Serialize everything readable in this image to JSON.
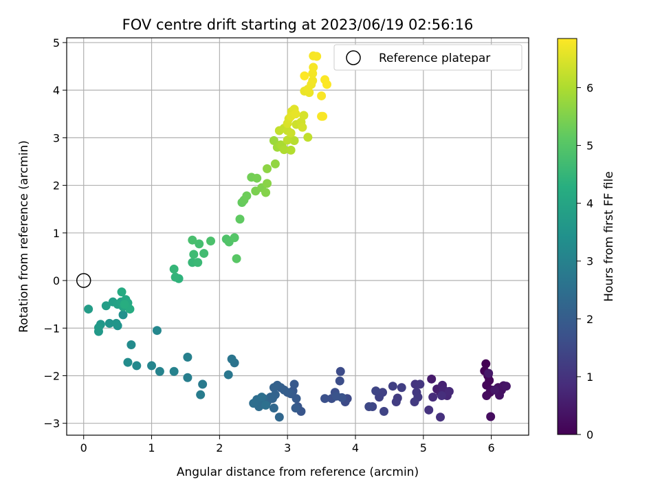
{
  "chart_data": {
    "type": "scatter",
    "title": "FOV centre drift starting at 2023/06/19 02:56:16",
    "xlabel": "Angular distance from reference (arcmin)",
    "ylabel": "Rotation from reference (arcmin)",
    "xlim": [
      -0.25,
      6.55
    ],
    "ylim": [
      -3.25,
      5.1
    ],
    "xticks": [
      0,
      1,
      2,
      3,
      4,
      5,
      6
    ],
    "yticks": [
      -3,
      -2,
      -1,
      0,
      1,
      2,
      3,
      4,
      5
    ],
    "xtick_labels": [
      "0",
      "1",
      "2",
      "3",
      "4",
      "5",
      "6"
    ],
    "ytick_labels": [
      "−3",
      "−2",
      "−1",
      "0",
      "1",
      "2",
      "3",
      "4",
      "5"
    ],
    "grid": true,
    "colormap": "viridis",
    "colorbar": {
      "label": "Hours from first FF file",
      "range": [
        0,
        6.85
      ],
      "ticks": [
        0,
        1,
        2,
        3,
        4,
        5,
        6
      ],
      "tick_labels": [
        "0",
        "1",
        "2",
        "3",
        "4",
        "5",
        "6"
      ]
    },
    "legend": {
      "placement": "top-right",
      "entries": [
        "Reference platepar"
      ]
    },
    "reference_point": {
      "x": 0,
      "y": 0
    },
    "points": [
      [
        5.92,
        -1.75,
        0.0
      ],
      [
        5.9,
        -1.9,
        0.03
      ],
      [
        5.95,
        -2.0,
        0.06
      ],
      [
        5.97,
        -2.1,
        0.09
      ],
      [
        5.93,
        -2.2,
        0.12
      ],
      [
        6.0,
        -2.3,
        0.15
      ],
      [
        5.98,
        -2.35,
        0.18
      ],
      [
        5.93,
        -2.42,
        0.21
      ],
      [
        5.99,
        -2.86,
        0.24
      ],
      [
        6.1,
        -2.25,
        0.27
      ],
      [
        6.15,
        -2.3,
        0.3
      ],
      [
        6.12,
        -2.41,
        0.33
      ],
      [
        6.18,
        -2.21,
        0.36
      ],
      [
        6.22,
        -2.22,
        0.39
      ],
      [
        6.05,
        -2.3,
        0.42
      ],
      [
        5.96,
        -1.95,
        0.45
      ],
      [
        5.12,
        -2.07,
        0.5
      ],
      [
        5.2,
        -2.28,
        0.55
      ],
      [
        5.25,
        -2.35,
        0.6
      ],
      [
        5.28,
        -2.2,
        0.65
      ],
      [
        5.3,
        -2.3,
        0.7
      ],
      [
        5.35,
        -2.42,
        0.75
      ],
      [
        5.38,
        -2.33,
        0.8
      ],
      [
        5.14,
        -2.45,
        0.85
      ],
      [
        5.27,
        -2.42,
        0.9
      ],
      [
        5.25,
        -2.87,
        0.95
      ],
      [
        5.08,
        -2.72,
        1.0
      ],
      [
        4.88,
        -2.18,
        1.05
      ],
      [
        4.95,
        -2.18,
        1.08
      ],
      [
        4.9,
        -2.35,
        1.11
      ],
      [
        4.92,
        -2.45,
        1.14
      ],
      [
        4.87,
        -2.55,
        1.17
      ],
      [
        4.62,
        -2.47,
        1.2
      ],
      [
        4.6,
        -2.55,
        1.23
      ],
      [
        4.68,
        -2.25,
        1.26
      ],
      [
        4.55,
        -2.22,
        1.29
      ],
      [
        4.4,
        -2.35,
        1.32
      ],
      [
        4.35,
        -2.45,
        1.35
      ],
      [
        4.42,
        -2.75,
        1.38
      ],
      [
        4.3,
        -2.32,
        1.41
      ],
      [
        4.25,
        -2.65,
        1.44
      ],
      [
        4.2,
        -2.65,
        1.47
      ],
      [
        3.88,
        -2.48,
        1.52
      ],
      [
        3.85,
        -2.55,
        1.55
      ],
      [
        3.78,
        -1.91,
        1.58
      ],
      [
        3.77,
        -2.11,
        1.61
      ],
      [
        3.7,
        -2.35,
        1.64
      ],
      [
        3.65,
        -2.48,
        1.67
      ],
      [
        3.55,
        -2.48,
        1.7
      ],
      [
        3.8,
        -2.46,
        1.73
      ],
      [
        3.72,
        -2.43,
        1.76
      ],
      [
        3.2,
        -2.75,
        1.8
      ],
      [
        3.15,
        -2.65,
        1.83
      ],
      [
        3.08,
        -2.32,
        1.86
      ],
      [
        3.1,
        -2.18,
        1.89
      ],
      [
        3.13,
        -2.48,
        1.92
      ],
      [
        3.05,
        -2.38,
        1.95
      ],
      [
        3.12,
        -2.68,
        1.98
      ],
      [
        3.0,
        -2.35,
        2.01
      ],
      [
        2.95,
        -2.3,
        2.04
      ],
      [
        2.9,
        -2.25,
        2.07
      ],
      [
        2.85,
        -2.2,
        2.1
      ],
      [
        2.8,
        -2.25,
        2.13
      ],
      [
        2.82,
        -2.4,
        2.16
      ],
      [
        2.78,
        -2.48,
        2.19
      ],
      [
        2.75,
        -2.45,
        2.22
      ],
      [
        2.7,
        -2.55,
        2.25
      ],
      [
        2.88,
        -2.87,
        2.28
      ],
      [
        2.8,
        -2.68,
        2.31
      ],
      [
        2.65,
        -2.48,
        2.34
      ],
      [
        2.6,
        -2.55,
        2.37
      ],
      [
        2.58,
        -2.65,
        2.4
      ],
      [
        2.55,
        -2.5,
        2.43
      ],
      [
        2.5,
        -2.58,
        2.46
      ],
      [
        2.62,
        -2.45,
        2.49
      ],
      [
        2.68,
        -2.62,
        2.52
      ],
      [
        2.22,
        -1.73,
        2.6
      ],
      [
        2.18,
        -1.65,
        2.65
      ],
      [
        2.13,
        -1.98,
        2.7
      ],
      [
        1.75,
        -2.18,
        2.8
      ],
      [
        1.72,
        -2.4,
        2.85
      ],
      [
        1.53,
        -2.04,
        2.9
      ],
      [
        1.53,
        -1.61,
        2.95
      ],
      [
        1.33,
        -1.91,
        3.0
      ],
      [
        1.12,
        -1.91,
        3.05
      ],
      [
        1.0,
        -1.79,
        3.1
      ],
      [
        1.08,
        -1.05,
        3.15
      ],
      [
        0.78,
        -1.79,
        3.2
      ],
      [
        0.7,
        -1.35,
        3.25
      ],
      [
        0.65,
        -1.72,
        3.3
      ],
      [
        0.58,
        -0.72,
        3.4
      ],
      [
        0.5,
        -0.95,
        3.45
      ],
      [
        0.38,
        -0.9,
        3.5
      ],
      [
        0.48,
        -0.9,
        3.55
      ],
      [
        0.25,
        -0.92,
        3.6
      ],
      [
        0.22,
        -1.07,
        3.65
      ],
      [
        0.22,
        -0.99,
        3.7
      ],
      [
        0.07,
        -0.6,
        3.75
      ],
      [
        0.33,
        -0.53,
        3.8
      ],
      [
        0.43,
        -0.45,
        3.85
      ],
      [
        0.5,
        -0.5,
        3.9
      ],
      [
        0.55,
        -0.45,
        3.95
      ],
      [
        0.58,
        -0.55,
        4.0
      ],
      [
        0.62,
        -0.4,
        4.05
      ],
      [
        0.65,
        -0.47,
        4.1
      ],
      [
        0.56,
        -0.24,
        4.15
      ],
      [
        0.68,
        -0.6,
        4.2
      ],
      [
        0.6,
        -0.5,
        4.25
      ],
      [
        1.4,
        0.04,
        4.4
      ],
      [
        1.35,
        0.07,
        4.45
      ],
      [
        1.33,
        0.24,
        4.5
      ],
      [
        1.6,
        0.38,
        4.55
      ],
      [
        1.68,
        0.38,
        4.6
      ],
      [
        1.62,
        0.55,
        4.65
      ],
      [
        1.77,
        0.57,
        4.7
      ],
      [
        1.7,
        0.77,
        4.75
      ],
      [
        1.6,
        0.85,
        4.8
      ],
      [
        1.87,
        0.83,
        4.85
      ],
      [
        2.1,
        0.87,
        4.9
      ],
      [
        2.14,
        0.81,
        4.95
      ],
      [
        2.22,
        0.9,
        5.0
      ],
      [
        2.25,
        0.46,
        5.05
      ],
      [
        2.3,
        1.29,
        5.15
      ],
      [
        2.33,
        1.64,
        5.2
      ],
      [
        2.36,
        1.69,
        5.25
      ],
      [
        2.4,
        1.78,
        5.3
      ],
      [
        2.47,
        2.17,
        5.35
      ],
      [
        2.55,
        2.15,
        5.4
      ],
      [
        2.53,
        1.88,
        5.45
      ],
      [
        2.62,
        1.95,
        5.5
      ],
      [
        2.68,
        1.85,
        5.55
      ],
      [
        2.7,
        2.04,
        5.6
      ],
      [
        2.7,
        2.35,
        5.65
      ],
      [
        2.82,
        2.45,
        5.7
      ],
      [
        2.8,
        2.94,
        5.8
      ],
      [
        2.85,
        2.8,
        5.85
      ],
      [
        2.9,
        2.85,
        5.9
      ],
      [
        2.92,
        2.83,
        5.95
      ],
      [
        2.95,
        2.75,
        6.0
      ],
      [
        3.05,
        2.74,
        6.05
      ],
      [
        3.1,
        2.94,
        6.1
      ],
      [
        3.0,
        2.95,
        6.15
      ],
      [
        3.3,
        3.01,
        6.2
      ],
      [
        2.88,
        3.15,
        6.22
      ],
      [
        2.95,
        3.2,
        6.25
      ],
      [
        3.0,
        3.15,
        6.28
      ],
      [
        3.05,
        3.1,
        6.31
      ],
      [
        3.13,
        3.28,
        6.34
      ],
      [
        3.2,
        3.33,
        6.37
      ],
      [
        3.22,
        3.22,
        6.4
      ],
      [
        3.24,
        3.47,
        6.43
      ],
      [
        3.0,
        3.3,
        6.46
      ],
      [
        3.02,
        3.4,
        6.49
      ],
      [
        3.06,
        3.55,
        6.52
      ],
      [
        3.1,
        3.6,
        6.55
      ],
      [
        3.05,
        3.45,
        6.58
      ],
      [
        3.12,
        3.5,
        6.61
      ],
      [
        3.25,
        3.98,
        6.65
      ],
      [
        3.32,
        3.95,
        6.67
      ],
      [
        3.3,
        4.02,
        6.69
      ],
      [
        3.35,
        4.12,
        6.71
      ],
      [
        3.37,
        4.2,
        6.73
      ],
      [
        3.37,
        4.35,
        6.75
      ],
      [
        3.38,
        4.48,
        6.77
      ],
      [
        3.38,
        4.72,
        6.79
      ],
      [
        3.43,
        4.71,
        6.8
      ],
      [
        3.5,
        3.88,
        6.81
      ],
      [
        3.52,
        3.45,
        6.82
      ],
      [
        3.55,
        4.22,
        6.83
      ],
      [
        3.58,
        4.12,
        6.84
      ],
      [
        3.25,
        4.3,
        6.85
      ],
      [
        3.5,
        3.45,
        6.8
      ]
    ]
  }
}
